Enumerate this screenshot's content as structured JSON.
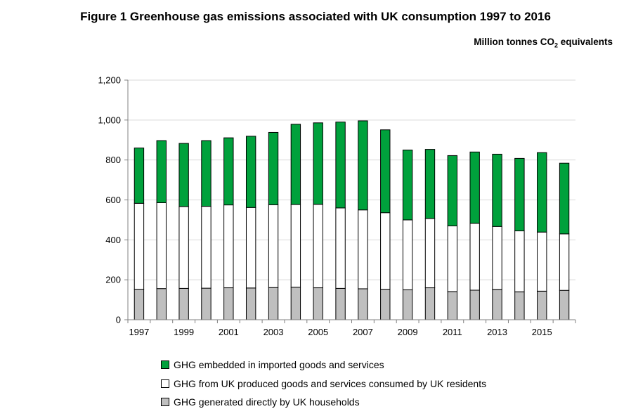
{
  "header": {
    "title": "Figure 1 Greenhouse gas emissions associated with UK consumption 1997 to 2016",
    "units_prefix": "Million tonnes CO",
    "units_sub": "2",
    "units_suffix": " equivalents"
  },
  "chart_data": {
    "type": "bar",
    "stacked": true,
    "categories": [
      1997,
      1998,
      1999,
      2000,
      2001,
      2002,
      2003,
      2004,
      2005,
      2006,
      2007,
      2008,
      2009,
      2010,
      2011,
      2012,
      2013,
      2014,
      2015,
      2016
    ],
    "x_tick_labels": [
      "1997",
      "",
      "1999",
      "",
      "2001",
      "",
      "2003",
      "",
      "2005",
      "",
      "2007",
      "",
      "2009",
      "",
      "2011",
      "",
      "2013",
      "",
      "2015",
      ""
    ],
    "ylim": [
      0,
      1200
    ],
    "y_ticks": [
      0,
      200,
      400,
      600,
      800,
      1000,
      1200
    ],
    "y_tick_labels": [
      "0",
      "200",
      "400",
      "600",
      "800",
      "1,000",
      "1,200"
    ],
    "grid": true,
    "legend_position": "bottom",
    "series": [
      {
        "name": "GHG generated directly by UK households",
        "color": "#bfbfbf",
        "values": [
          153,
          156,
          157,
          158,
          160,
          159,
          161,
          163,
          160,
          157,
          155,
          153,
          150,
          160,
          141,
          148,
          152,
          140,
          143,
          147
        ]
      },
      {
        "name": "GHG from UK produced goods and services consumed by UK residents",
        "color": "#ffffff",
        "values": [
          430,
          430,
          410,
          410,
          415,
          403,
          415,
          414,
          418,
          403,
          395,
          383,
          350,
          347,
          329,
          335,
          315,
          305,
          296,
          283
        ]
      },
      {
        "name": "GHG embedded in imported goods and services",
        "color": "#00a13c",
        "values": [
          277,
          311,
          316,
          329,
          336,
          357,
          362,
          402,
          408,
          430,
          446,
          415,
          350,
          346,
          352,
          357,
          362,
          363,
          398,
          354
        ]
      }
    ]
  }
}
